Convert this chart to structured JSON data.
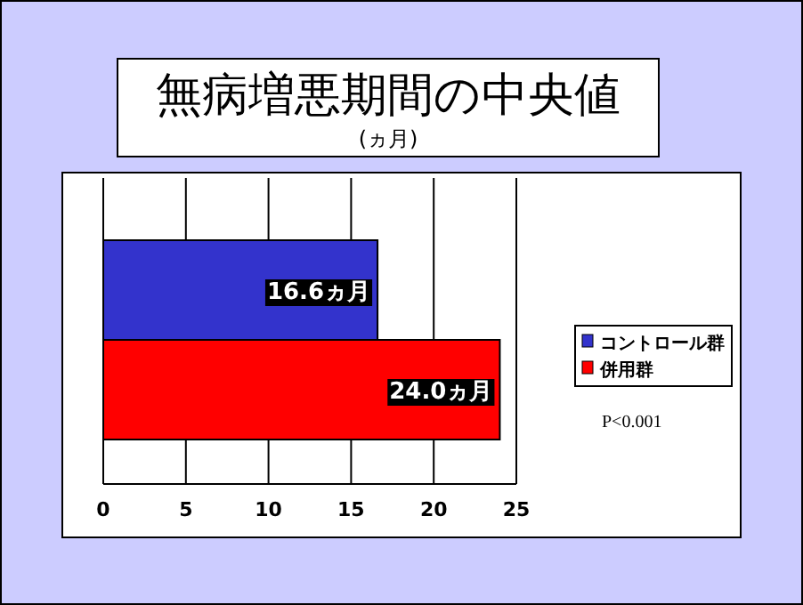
{
  "chart_data": {
    "type": "bar",
    "orientation": "horizontal",
    "title": "無病増悪期間の中央値",
    "subtitle": "(ヵ月)",
    "categories": [
      null
    ],
    "series": [
      {
        "name": "コントロール群",
        "color": "#3333cc",
        "values": [
          16.6
        ],
        "value_labels": [
          "16.6ヵ月"
        ]
      },
      {
        "name": "併用群",
        "color": "#ff0000",
        "values": [
          24.0
        ],
        "value_labels": [
          "24.0ヵ月"
        ]
      }
    ],
    "xlim": [
      0,
      25
    ],
    "xticks": [
      0,
      5,
      10,
      15,
      20,
      25
    ],
    "grid": "x",
    "legend": "right",
    "annotations": [
      "P<0.001"
    ]
  }
}
